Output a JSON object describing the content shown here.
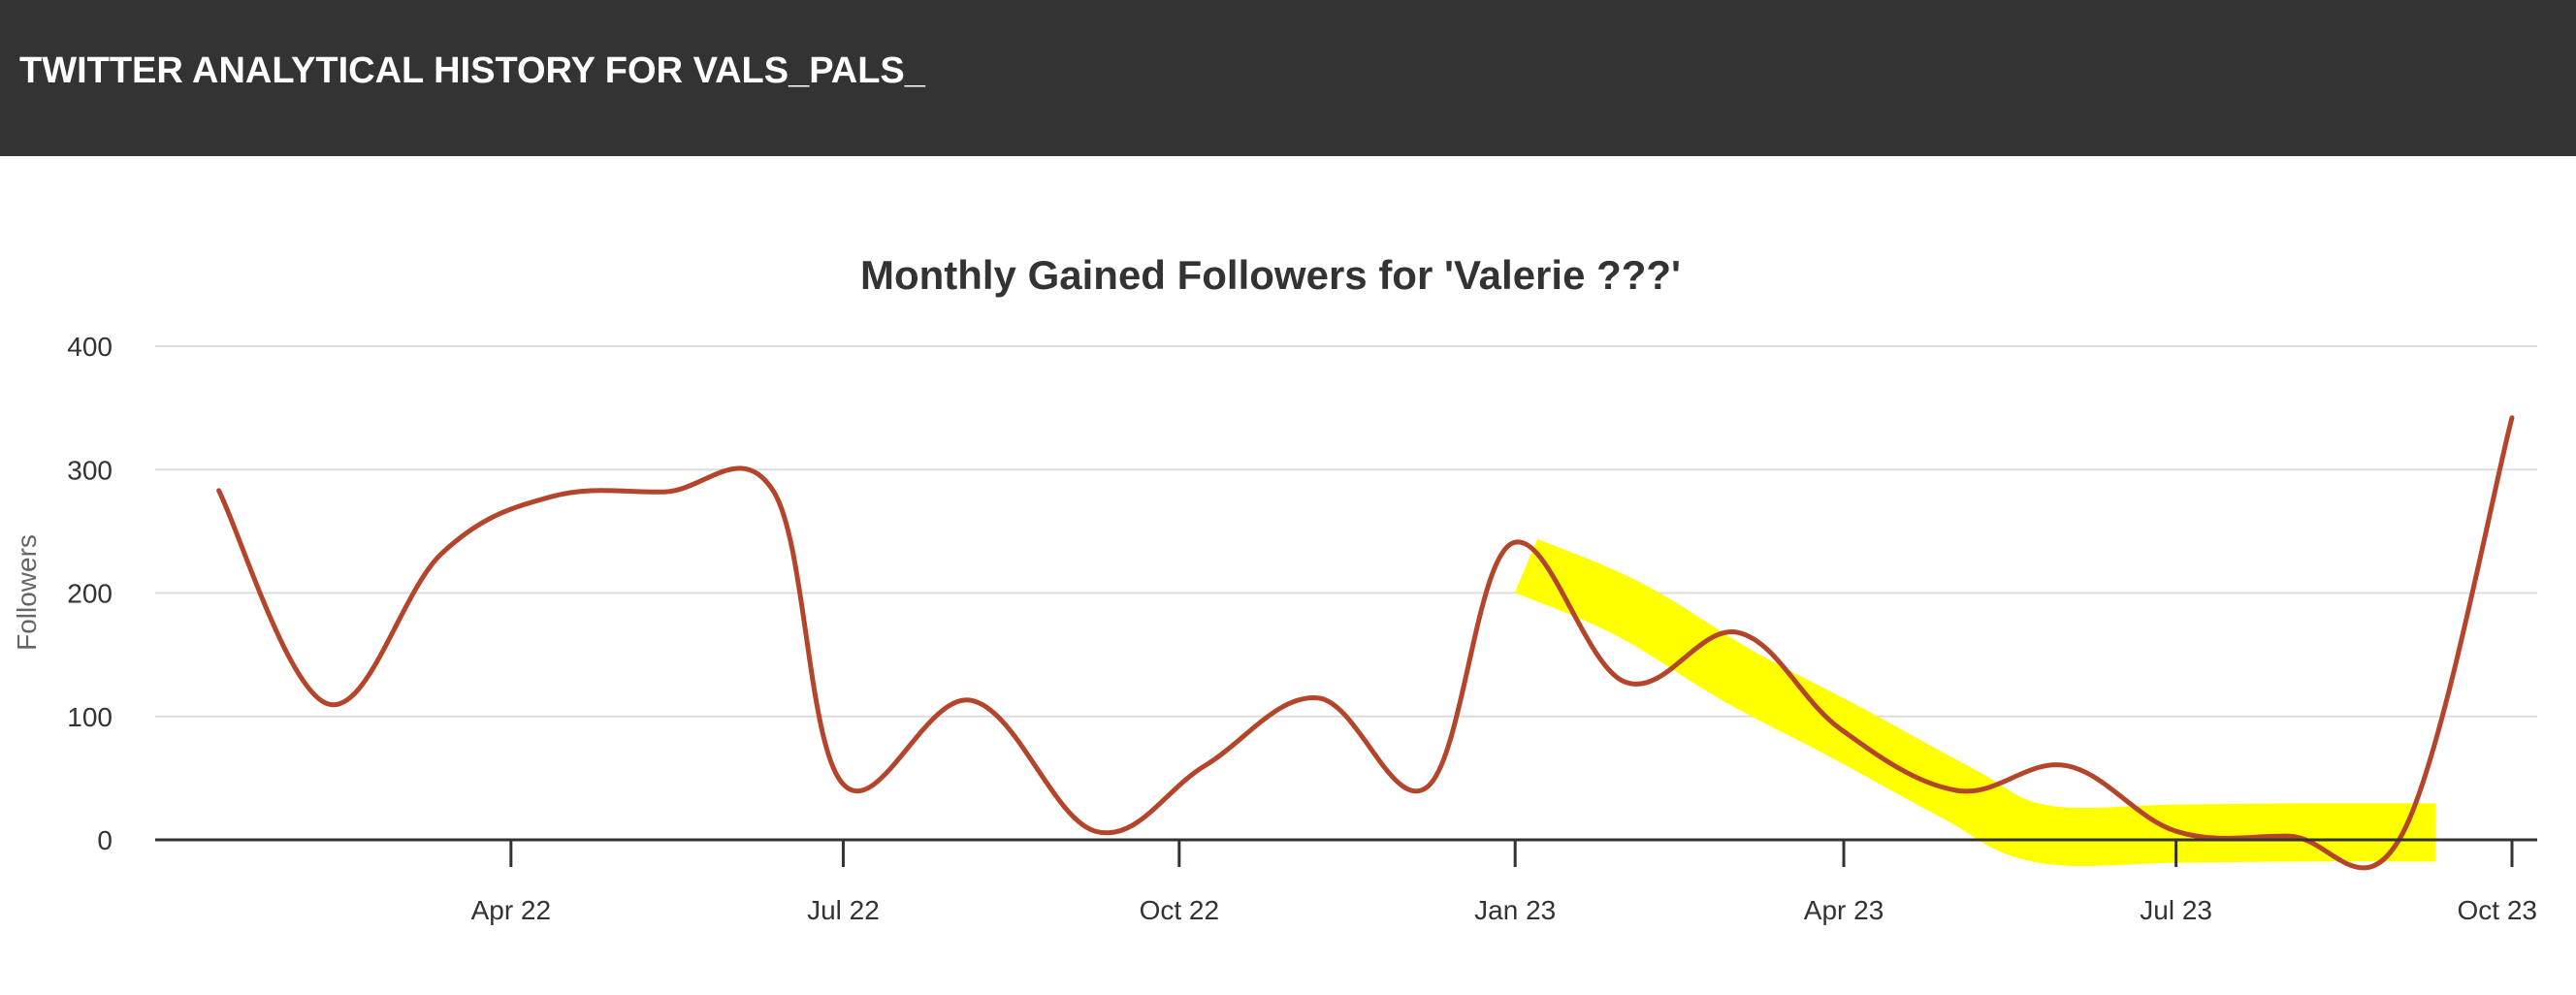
{
  "header": {
    "title": "TWITTER ANALYTICAL HISTORY FOR VALS_PALS_"
  },
  "chart_data": {
    "type": "line",
    "title": "Monthly Gained Followers for 'Valerie ???'",
    "xlabel": "",
    "ylabel": "Followers",
    "ylim": [
      0,
      400
    ],
    "yticks": [
      0,
      100,
      200,
      300,
      400
    ],
    "xticks": [
      "Apr 22",
      "Jul 22",
      "Oct 22",
      "Jan 23",
      "Apr 23",
      "Jul 23",
      "Oct 23"
    ],
    "grid": true,
    "series": [
      {
        "color": "#b5452a",
        "points": [
          {
            "x": "2022-01-11",
            "y": 283
          },
          {
            "x": "2022-02-10",
            "y": 110
          },
          {
            "x": "2022-03-13",
            "y": 232
          },
          {
            "x": "2022-04-12",
            "y": 278
          },
          {
            "x": "2022-05-13",
            "y": 282
          },
          {
            "x": "2022-06-12",
            "y": 282
          },
          {
            "x": "2022-07-01",
            "y": 45
          },
          {
            "x": "2022-08-05",
            "y": 113
          },
          {
            "x": "2022-09-08",
            "y": 7
          },
          {
            "x": "2022-10-08",
            "y": 60
          },
          {
            "x": "2022-11-08",
            "y": 115
          },
          {
            "x": "2022-12-08",
            "y": 43
          },
          {
            "x": "2022-12-31",
            "y": 240
          },
          {
            "x": "2023-01-31",
            "y": 128
          },
          {
            "x": "2023-03-03",
            "y": 168
          },
          {
            "x": "2023-03-31",
            "y": 90
          },
          {
            "x": "2023-05-02",
            "y": 40
          },
          {
            "x": "2023-06-01",
            "y": 60
          },
          {
            "x": "2023-07-01",
            "y": 7
          },
          {
            "x": "2023-08-01",
            "y": 3
          },
          {
            "x": "2023-09-01",
            "y": 5
          },
          {
            "x": "2023-10-01",
            "y": 342
          }
        ]
      }
    ],
    "highlight": {
      "color": "#ffff00",
      "points": [
        {
          "x": "2023-01-04",
          "y": 222
        },
        {
          "x": "2023-02-01",
          "y": 187
        },
        {
          "x": "2023-03-03",
          "y": 133
        },
        {
          "x": "2023-04-01",
          "y": 88
        },
        {
          "x": "2023-05-02",
          "y": 38
        },
        {
          "x": "2023-05-25",
          "y": 5
        },
        {
          "x": "2023-07-01",
          "y": 5
        },
        {
          "x": "2023-08-01",
          "y": 6
        },
        {
          "x": "2023-09-10",
          "y": 6
        }
      ]
    }
  }
}
